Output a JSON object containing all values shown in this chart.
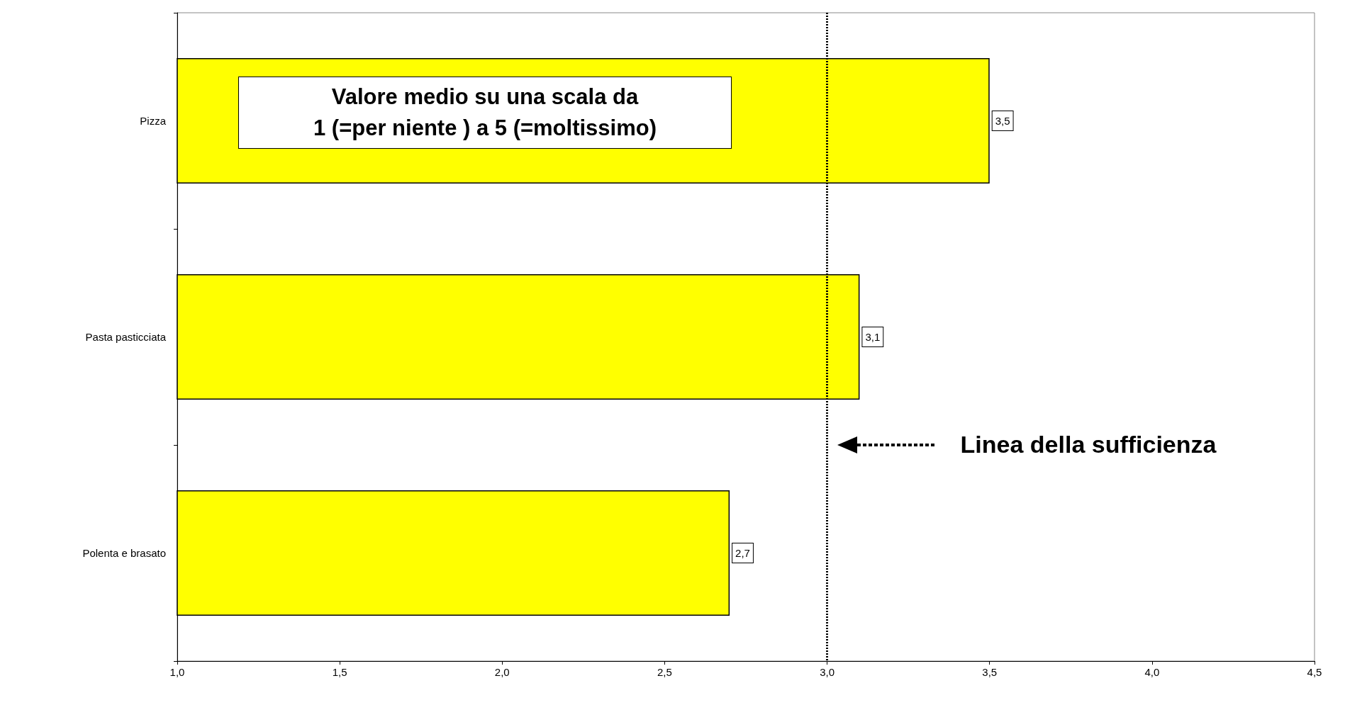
{
  "chart_data": {
    "type": "bar",
    "orientation": "horizontal",
    "categories": [
      "Pizza",
      "Pasta pasticciata",
      "Polenta e brasato"
    ],
    "values": [
      3.5,
      3.1,
      2.7
    ],
    "value_labels": [
      "3,5",
      "3,1",
      "2,7"
    ],
    "color": "#ffff00",
    "xlim": [
      1,
      4.5
    ],
    "xticks": [
      {
        "value": 1,
        "label": "1,0"
      },
      {
        "value": 1.5,
        "label": "1,5"
      },
      {
        "value": 2,
        "label": "2,0"
      },
      {
        "value": 2.5,
        "label": "2,5"
      },
      {
        "value": 3,
        "label": "3,0"
      },
      {
        "value": 3.5,
        "label": "3,5"
      },
      {
        "value": 4,
        "label": "4,0"
      },
      {
        "value": 4.5,
        "label": "4,5"
      }
    ],
    "grid": false,
    "ref_lines": [
      {
        "axis": "x",
        "value": 3,
        "label": "Linea della sufficienza",
        "line_style": "dotted",
        "color": "#000000"
      }
    ],
    "annotations": [
      "Valore medio su una scala da\n1 (=per niente ) a 5 (=moltissimo)"
    ]
  }
}
